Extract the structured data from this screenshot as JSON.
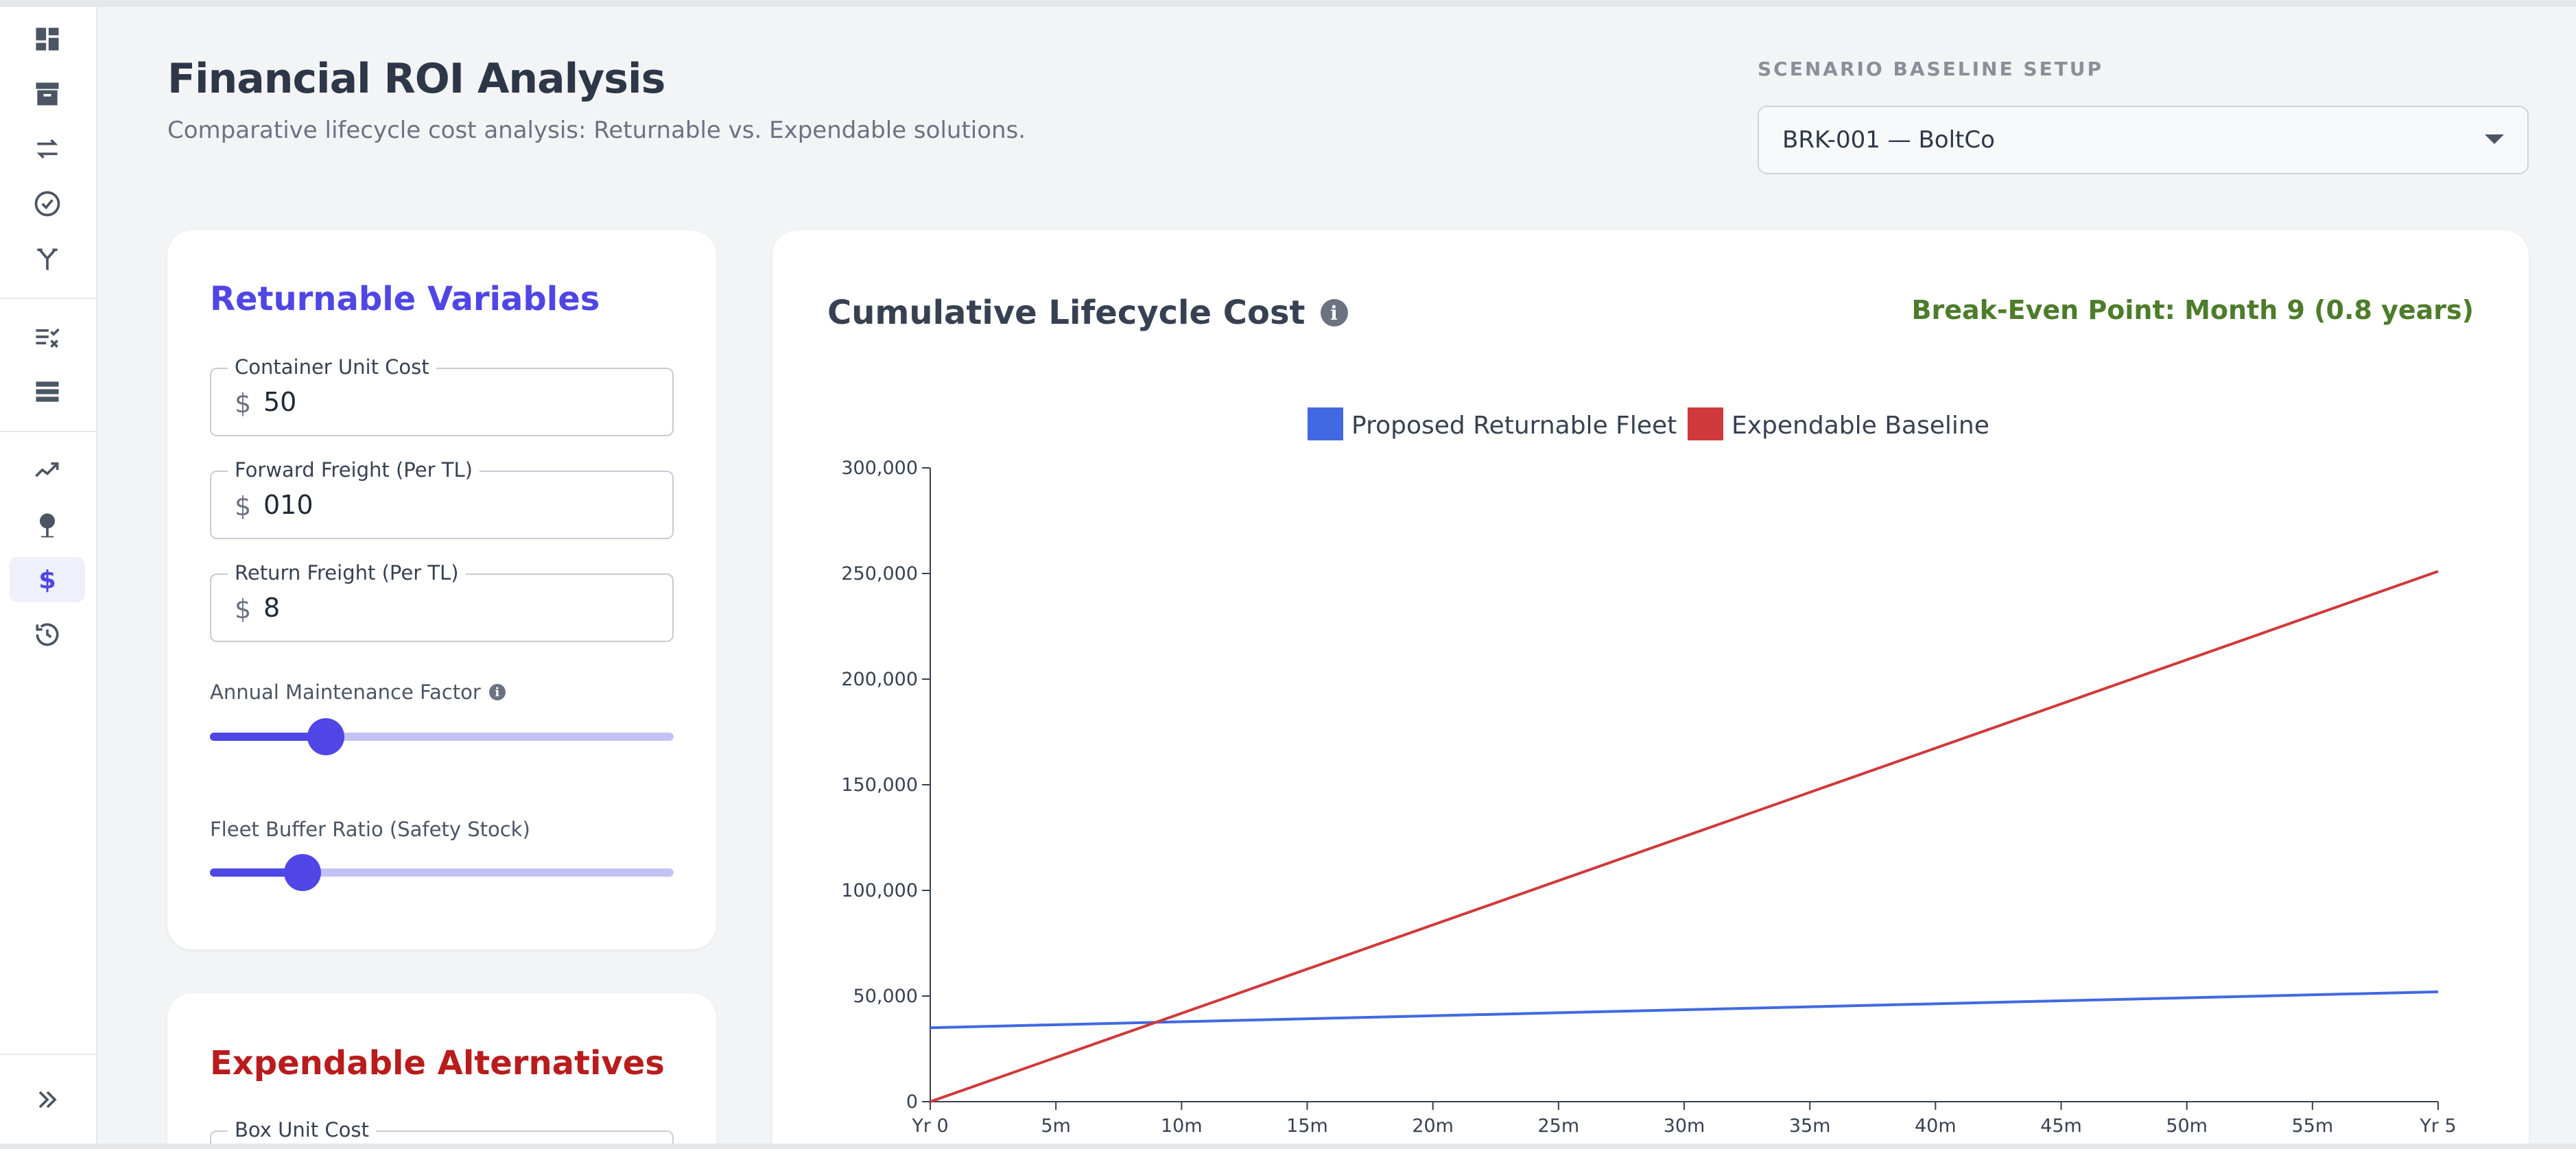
{
  "header": {
    "title": "Financial ROI Analysis",
    "subtitle": "Comparative lifecycle cost analysis: Returnable vs. Expendable solutions.",
    "scenario_label": "SCENARIO BASELINE SETUP",
    "scenario_value": "BRK-001 — BoltCo"
  },
  "sidebar": {
    "items": [
      {
        "icon": "dashboard-icon"
      },
      {
        "icon": "archive-icon"
      },
      {
        "icon": "transfer-arrows-icon"
      },
      {
        "icon": "check-circle-icon"
      },
      {
        "icon": "fork-icon"
      },
      {
        "icon": "checklist-icon"
      },
      {
        "icon": "storage-icon"
      },
      {
        "icon": "trend-chart-icon"
      },
      {
        "icon": "location-pin-icon"
      },
      {
        "icon": "dollar-icon",
        "active": true
      },
      {
        "icon": "history-icon"
      }
    ],
    "expand_icon": "double-chevron-right-icon"
  },
  "returnable": {
    "title": "Returnable Variables",
    "container_unit_cost": {
      "label": "Container Unit Cost",
      "prefix": "$",
      "value": "50"
    },
    "forward_freight": {
      "label": "Forward Freight (Per TL)",
      "prefix": "$",
      "value": "010"
    },
    "return_freight": {
      "label": "Return Freight (Per TL)",
      "prefix": "$",
      "value": "8"
    },
    "maintenance": {
      "label": "Annual Maintenance Factor",
      "level": 0.25
    },
    "buffer": {
      "label": "Fleet Buffer Ratio (Safety Stock)",
      "level": 0.2
    }
  },
  "expendable": {
    "title": "Expendable Alternatives",
    "box_unit_cost": {
      "label": "Box Unit Cost"
    }
  },
  "chart": {
    "title": "Cumulative Lifecycle Cost",
    "break_even": "Break-Even Point: Month 9 (0.8 years)"
  },
  "colors": {
    "returnable": "#4169e1",
    "expendable": "#d0393b",
    "accent": "#4f46e5",
    "break_even": "#4d7c2a"
  },
  "chart_data": {
    "type": "line",
    "x_tick_labels": [
      "Yr 0",
      "5m",
      "10m",
      "15m",
      "20m",
      "25m",
      "30m",
      "35m",
      "40m",
      "45m",
      "50m",
      "55m",
      "Yr 5"
    ],
    "x_unit": "months",
    "xlim": [
      0,
      60
    ],
    "ylim": [
      0,
      300000
    ],
    "y_ticks": [
      0,
      50000,
      100000,
      150000,
      200000,
      250000,
      300000
    ],
    "y_tick_labels": [
      "0",
      "50,000",
      "100,000",
      "150,000",
      "200,000",
      "250,000",
      "300,000"
    ],
    "legend_position": "top-center",
    "grid": false,
    "series": [
      {
        "name": "Proposed Returnable Fleet",
        "x": [
          0,
          60
        ],
        "y": [
          35000,
          52000
        ]
      },
      {
        "name": "Expendable Baseline",
        "x": [
          0,
          60
        ],
        "y": [
          0,
          251000
        ]
      }
    ]
  }
}
